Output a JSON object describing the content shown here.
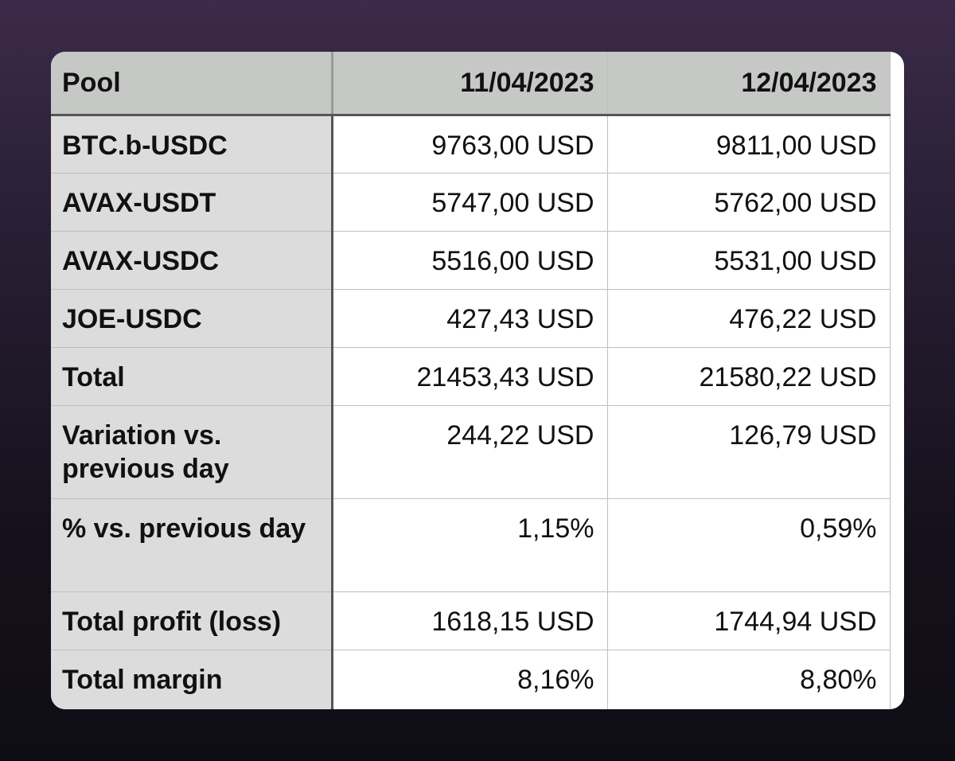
{
  "table": {
    "header": [
      "Pool",
      "11/04/2023",
      "12/04/2023"
    ],
    "rows": [
      {
        "label": "BTC.b-USDC",
        "v1": "9763,00 USD",
        "v2": "9811,00 USD"
      },
      {
        "label": "AVAX-USDT",
        "v1": "5747,00 USD",
        "v2": "5762,00 USD"
      },
      {
        "label": "AVAX-USDC",
        "v1": "5516,00 USD",
        "v2": "5531,00 USD"
      },
      {
        "label": "JOE-USDC",
        "v1": "427,43 USD",
        "v2": "476,22 USD"
      },
      {
        "label": "Total",
        "v1": "21453,43 USD",
        "v2": "21580,22 USD"
      },
      {
        "label": "Variation vs. previous day",
        "v1": "244,22 USD",
        "v2": "126,79 USD"
      },
      {
        "label": "% vs. previous day",
        "v1": "1,15%",
        "v2": "0,59%"
      },
      {
        "label": "Total profit (loss)",
        "v1": "1618,15 USD",
        "v2": "1744,94 USD"
      },
      {
        "label": "Total margin",
        "v1": "8,16%",
        "v2": "8,80%"
      }
    ]
  },
  "colors": {
    "header_bg": "#c6c8c6",
    "label_bg": "#dcdcdc",
    "card_bg": "#ffffff"
  }
}
